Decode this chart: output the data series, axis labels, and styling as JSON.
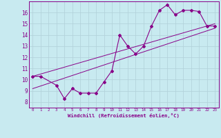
{
  "title": "",
  "xlabel": "Windchill (Refroidissement éolien,°C)",
  "background_color": "#c8eaf0",
  "grid_color": "#b0d0d8",
  "line_color": "#880088",
  "text_color": "#880088",
  "xlim": [
    -0.5,
    23.5
  ],
  "ylim": [
    7.5,
    17.0
  ],
  "xticks": [
    0,
    1,
    2,
    3,
    4,
    5,
    6,
    7,
    8,
    9,
    10,
    11,
    12,
    13,
    14,
    15,
    16,
    17,
    18,
    19,
    20,
    21,
    22,
    23
  ],
  "yticks": [
    8,
    9,
    10,
    11,
    12,
    13,
    14,
    15,
    16
  ],
  "data_x": [
    0,
    1,
    3,
    4,
    5,
    6,
    7,
    8,
    9,
    10,
    11,
    12,
    13,
    14,
    15,
    16,
    17,
    18,
    19,
    20,
    21,
    22,
    23
  ],
  "data_y": [
    10.3,
    10.3,
    9.5,
    8.3,
    9.2,
    8.8,
    8.8,
    8.8,
    9.8,
    10.8,
    14.0,
    13.0,
    12.3,
    13.0,
    14.8,
    16.2,
    16.7,
    15.8,
    16.2,
    16.2,
    16.1,
    14.8,
    14.8
  ],
  "line1_x": [
    0,
    23
  ],
  "line1_y": [
    9.2,
    14.6
  ],
  "line2_x": [
    0,
    23
  ],
  "line2_y": [
    10.3,
    15.0
  ]
}
